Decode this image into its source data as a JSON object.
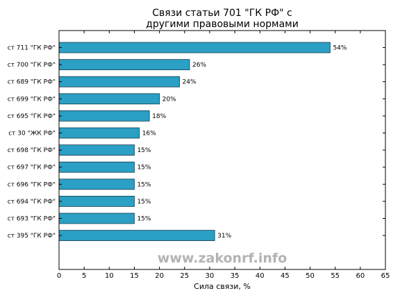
{
  "chart_data": {
    "type": "bar",
    "orientation": "horizontal",
    "title_lines": [
      "Связи статьи 701 \"ГК РФ\" с",
      "другими правовыми нормами"
    ],
    "xlabel": "Сила связи, %",
    "ylabel": "",
    "xlim": [
      0,
      65
    ],
    "xticks": [
      0,
      5,
      10,
      15,
      20,
      25,
      30,
      35,
      40,
      45,
      50,
      55,
      60,
      65
    ],
    "grid": false,
    "bar_color": "#2b9fc4",
    "bar_edge_color": "#1a3d4d",
    "categories": [
      "ст 711 \"ГК РФ\"",
      "ст 700 \"ГК РФ\"",
      "ст 689 \"ГК РФ\"",
      "ст 699 \"ГК РФ\"",
      "ст 695 \"ГК РФ\"",
      "ст 30 \"ЖК РФ\"",
      "ст 698 \"ГК РФ\"",
      "ст 697 \"ГК РФ\"",
      "ст 696 \"ГК РФ\"",
      "ст 694 \"ГК РФ\"",
      "ст 693 \"ГК РФ\"",
      "ст 395 \"ГК РФ\""
    ],
    "values": [
      54,
      26,
      24,
      20,
      18,
      16,
      15,
      15,
      15,
      15,
      15,
      31
    ],
    "value_labels": [
      "54%",
      "26%",
      "24%",
      "20%",
      "18%",
      "16%",
      "15%",
      "15%",
      "15%",
      "15%",
      "15%",
      "31%"
    ]
  },
  "watermark": "www.zakonrf.info"
}
